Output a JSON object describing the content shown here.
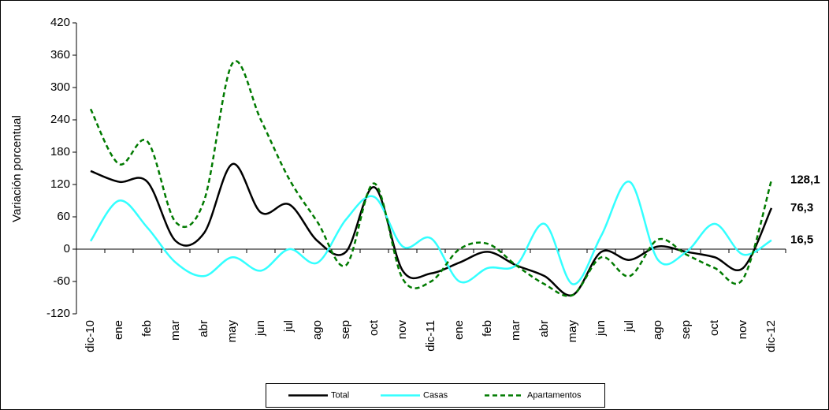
{
  "chart_data": {
    "type": "line",
    "y_label": "Variación porcentual",
    "categories": [
      "dic-10",
      "ene",
      "feb",
      "mar",
      "abr",
      "may",
      "jun",
      "jul",
      "ago",
      "sep",
      "oct",
      "nov",
      "dic-11",
      "ene",
      "feb",
      "mar",
      "abr",
      "may",
      "jun",
      "jul",
      "ago",
      "sep",
      "oct",
      "nov",
      "dic-12"
    ],
    "ylim": [
      -120,
      420
    ],
    "yticks": [
      -120,
      -60,
      0,
      60,
      120,
      180,
      240,
      300,
      360,
      420
    ],
    "series": [
      {
        "name": "Total",
        "color": "#000000",
        "dash": false,
        "values": [
          145,
          125,
          125,
          15,
          30,
          158,
          68,
          83,
          15,
          -5,
          115,
          -40,
          -45,
          -25,
          -5,
          -30,
          -50,
          -85,
          -5,
          -20,
          5,
          -5,
          -15,
          -35,
          76.3
        ],
        "value_labels": [
          null,
          null,
          null,
          null,
          null,
          null,
          null,
          null,
          null,
          null,
          null,
          null,
          null,
          null,
          null,
          null,
          null,
          null,
          null,
          null,
          null,
          null,
          null,
          null,
          "76,3"
        ],
        "label_color": "#000000"
      },
      {
        "name": "Casas",
        "color": "#33ffff",
        "dash": false,
        "values": [
          15,
          90,
          40,
          -25,
          -50,
          -15,
          -40,
          0,
          -25,
          55,
          97,
          5,
          20,
          -60,
          -35,
          -30,
          47,
          -65,
          25,
          125,
          -20,
          -5,
          47,
          -10,
          16.5
        ],
        "value_labels": [
          null,
          null,
          null,
          null,
          null,
          null,
          null,
          null,
          null,
          null,
          null,
          null,
          null,
          null,
          null,
          null,
          null,
          null,
          null,
          null,
          null,
          null,
          null,
          null,
          "16,5"
        ],
        "label_color": "#33ffff"
      },
      {
        "name": "Apartamentos",
        "color": "#007a00",
        "dash": true,
        "values": [
          260,
          158,
          200,
          50,
          90,
          345,
          240,
          130,
          50,
          -30,
          122,
          -55,
          -60,
          0,
          10,
          -30,
          -65,
          -85,
          -15,
          -50,
          18,
          -10,
          -35,
          -55,
          128.1
        ],
        "value_labels": [
          null,
          null,
          null,
          null,
          null,
          null,
          null,
          null,
          null,
          null,
          null,
          null,
          null,
          null,
          null,
          null,
          null,
          null,
          null,
          null,
          null,
          null,
          null,
          null,
          "128,1"
        ],
        "label_color": "#2e8b57"
      }
    ]
  }
}
